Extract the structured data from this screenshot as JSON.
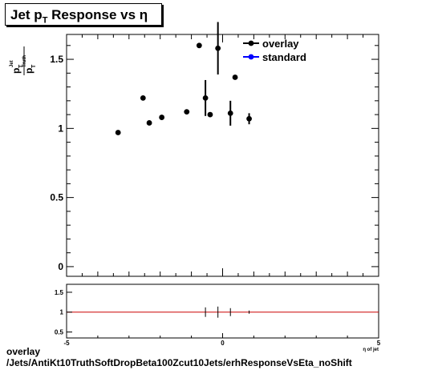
{
  "title": {
    "prefix": "Jet p",
    "sub": "T",
    "suffix": " Response vs  η"
  },
  "footer": {
    "line1": "overlay",
    "line2": "/Jets/AntiKt10TruthSoftDropBeta100Zcut10Jets/erhResponseVsEta_noShift"
  },
  "chart_data": [
    {
      "type": "scatter",
      "title": "Jet pT Response vs η",
      "ylabel_main": "p",
      "ylabel_sub_num": "T",
      "ylabel_sup_num": "Jet",
      "ylabel_den": "p",
      "ylabel_sub_den": "T",
      "ylabel_sup_den": "Truth",
      "xlim": [
        -5,
        5
      ],
      "ylim": [
        -0.07,
        1.68
      ],
      "yticks": [
        0,
        0.5,
        1,
        1.5
      ],
      "ytick_labels": [
        "0",
        "0.5",
        "1",
        "1.5"
      ],
      "legend": {
        "placement": "top-right",
        "entries": [
          "overlay",
          "standard"
        ]
      },
      "colors": {
        "overlay": "#000000",
        "standard": "#0000ff"
      },
      "series": [
        {
          "name": "overlay",
          "points": [
            {
              "x": -3.35,
              "y": 0.97,
              "err": 0.01
            },
            {
              "x": -2.55,
              "y": 1.22,
              "err": 0.01
            },
            {
              "x": -2.35,
              "y": 1.04,
              "err": 0.01
            },
            {
              "x": -1.95,
              "y": 1.08,
              "err": 0.01
            },
            {
              "x": -1.15,
              "y": 1.12,
              "err": 0.01
            },
            {
              "x": -0.75,
              "y": 1.6,
              "err": 0.01
            },
            {
              "x": -0.55,
              "y": 1.22,
              "err": 0.13
            },
            {
              "x": -0.4,
              "y": 1.1,
              "err": 0.01
            },
            {
              "x": -0.15,
              "y": 1.58,
              "err": 0.19
            },
            {
              "x": 0.25,
              "y": 1.11,
              "err": 0.09
            },
            {
              "x": 0.4,
              "y": 1.37,
              "err": 0.01
            },
            {
              "x": 0.85,
              "y": 1.07,
              "err": 0.04
            }
          ]
        },
        {
          "name": "standard",
          "points": []
        }
      ]
    },
    {
      "type": "scatter",
      "xlabel": "η of jet",
      "xlim": [
        -5,
        5
      ],
      "ylim": [
        0.35,
        1.7
      ],
      "yticks": [
        0.5,
        1,
        1.5
      ],
      "ytick_labels": [
        "0.5",
        "1",
        "1.5"
      ],
      "xticks": [
        -5,
        0,
        5
      ],
      "xtick_labels": [
        "-5",
        "0",
        "5"
      ],
      "reference_line": 1,
      "colors": {
        "reference": "#cc0000"
      },
      "series": [
        {
          "name": "ratio",
          "points": [
            {
              "x": -0.55,
              "y": 1.0,
              "err": 0.12
            },
            {
              "x": -0.15,
              "y": 1.0,
              "err": 0.14
            },
            {
              "x": 0.25,
              "y": 1.0,
              "err": 0.1
            },
            {
              "x": 0.85,
              "y": 1.0,
              "err": 0.04
            }
          ]
        }
      ]
    }
  ]
}
